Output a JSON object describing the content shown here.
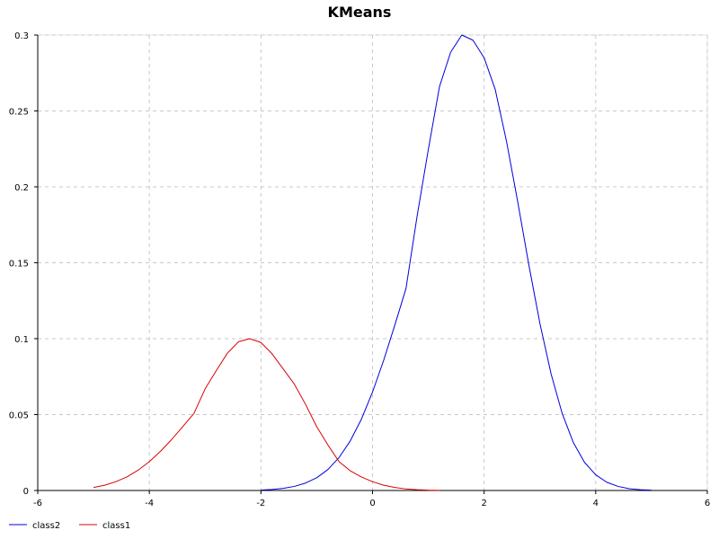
{
  "chart_data": {
    "type": "line",
    "title": "KMeans",
    "xlabel": "",
    "ylabel": "",
    "xlim": [
      -6,
      6
    ],
    "ylim": [
      0,
      0.3
    ],
    "x_ticks": [
      -6,
      -4,
      -2,
      0,
      2,
      4,
      6
    ],
    "y_ticks": [
      0,
      0.05,
      0.1,
      0.15,
      0.2,
      0.25,
      0.3
    ],
    "x_tick_labels": [
      "-6",
      "-4",
      "-2",
      "0",
      "2",
      "4",
      "6"
    ],
    "y_tick_labels": [
      "0",
      "0.05",
      "0.1",
      "0.15",
      "0.2",
      "0.25",
      "0.3"
    ],
    "grid": true,
    "legend_position": "bottom-left",
    "series": [
      {
        "name": "class2",
        "color": "#0000dd",
        "x": [
          -2.0,
          -1.8,
          -1.6,
          -1.4,
          -1.2,
          -1.0,
          -0.8,
          -0.6,
          -0.4,
          -0.2,
          0.0,
          0.2,
          0.4,
          0.6,
          0.8,
          1.0,
          1.2,
          1.4,
          1.6,
          1.8,
          2.0,
          2.2,
          2.4,
          2.6,
          2.8,
          3.0,
          3.2,
          3.4,
          3.6,
          3.8,
          4.0,
          4.2,
          4.4,
          4.6,
          4.8,
          5.0
        ],
        "y": [
          0.0003,
          0.0007,
          0.0014,
          0.0027,
          0.0049,
          0.0084,
          0.0138,
          0.0217,
          0.0326,
          0.0469,
          0.0648,
          0.0858,
          0.109,
          0.1331,
          0.181,
          0.2246,
          0.266,
          0.2887,
          0.3,
          0.2966,
          0.285,
          0.264,
          0.2302,
          0.1906,
          0.1489,
          0.11,
          0.0768,
          0.0506,
          0.0315,
          0.0185,
          0.0103,
          0.0054,
          0.0027,
          0.0012,
          0.0005,
          0.0002
        ]
      },
      {
        "name": "class1",
        "color": "#dd0000",
        "x": [
          -5.0,
          -4.8,
          -4.6,
          -4.4,
          -4.2,
          -4.0,
          -3.8,
          -3.6,
          -3.4,
          -3.2,
          -3.0,
          -2.8,
          -2.6,
          -2.4,
          -2.2,
          -2.0,
          -1.8,
          -1.6,
          -1.4,
          -1.2,
          -1.0,
          -0.8,
          -0.6,
          -0.4,
          -0.2,
          0.0,
          0.2,
          0.4,
          0.6,
          0.8,
          1.0,
          1.2
        ],
        "y": [
          0.002,
          0.0035,
          0.0058,
          0.009,
          0.0134,
          0.019,
          0.0258,
          0.0336,
          0.0421,
          0.0508,
          0.067,
          0.079,
          0.0905,
          0.098,
          0.1,
          0.0975,
          0.09,
          0.08,
          0.07,
          0.0567,
          0.042,
          0.03,
          0.019,
          0.013,
          0.0089,
          0.0058,
          0.0035,
          0.002,
          0.001,
          0.0005,
          0.0002,
          0.0001
        ]
      }
    ]
  }
}
